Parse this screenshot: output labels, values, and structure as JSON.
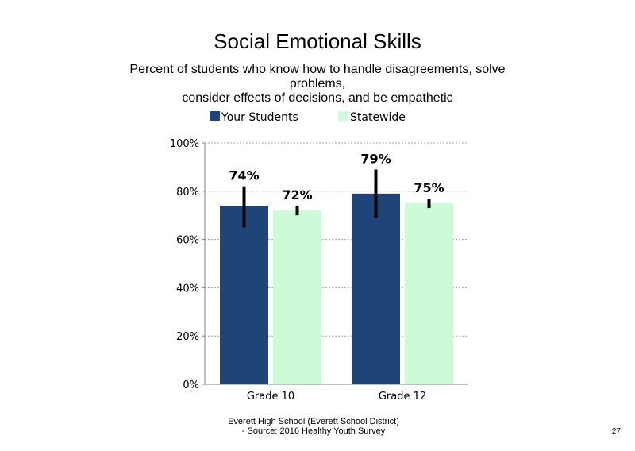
{
  "slide": {
    "title": "Social Emotional Skills",
    "subtitle_lines": [
      "Percent of students who know how to handle disagreements, solve problems,",
      "consider effects of decisions, and be empathetic"
    ],
    "footer_lines": [
      "Everett High School (Everett School District)",
      "- Source: 2016 Healthy Youth Survey"
    ],
    "page_number": "27"
  },
  "chart_data": {
    "type": "bar",
    "title": "Social Emotional Skills",
    "categories": [
      "Grade 10",
      "Grade 12"
    ],
    "series": [
      {
        "name": "Your Students",
        "color": "#1f4478",
        "values": [
          74,
          79
        ],
        "labels": [
          "74%",
          "79%"
        ],
        "error_low": [
          65,
          69
        ],
        "error_high": [
          82,
          89
        ]
      },
      {
        "name": "Statewide",
        "color": "#ccfbd8",
        "values": [
          72,
          75
        ],
        "labels": [
          "72%",
          "75%"
        ],
        "error_low": [
          70,
          73
        ],
        "error_high": [
          74,
          77
        ]
      }
    ],
    "ylim": [
      0,
      100
    ],
    "yticks": [
      0,
      20,
      40,
      60,
      80,
      100
    ],
    "ytick_labels": [
      "0%",
      "20%",
      "40%",
      "60%",
      "80%",
      "100%"
    ],
    "grid": "horizontal dotted",
    "legend": "top",
    "xlabel": "",
    "ylabel": ""
  }
}
